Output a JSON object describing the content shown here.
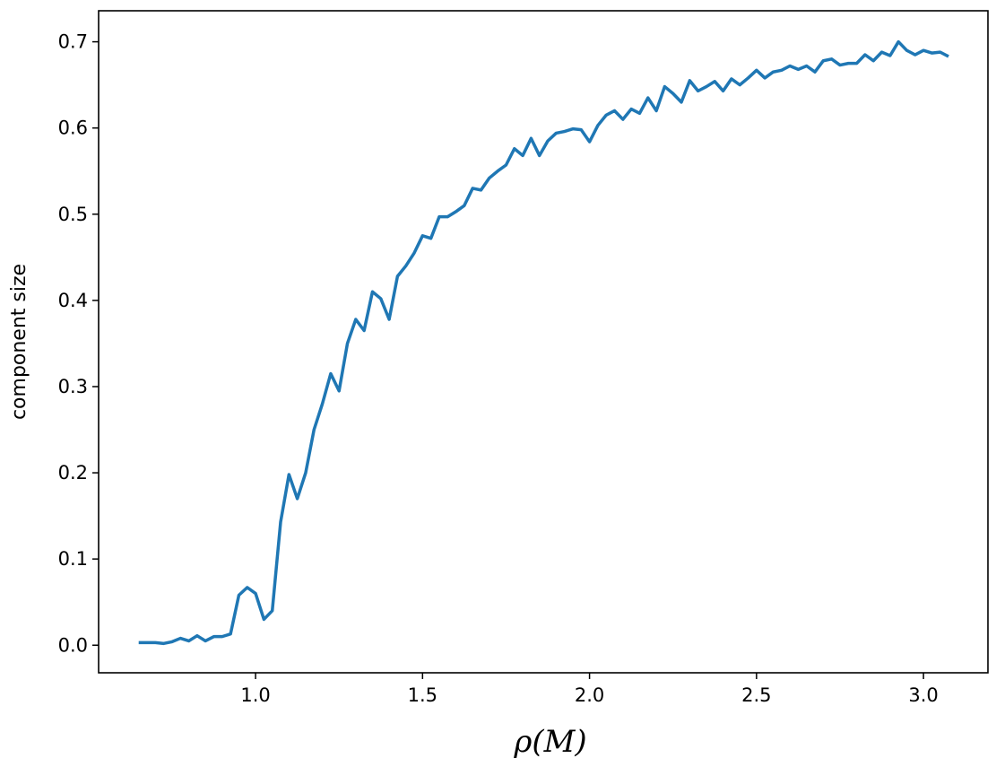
{
  "chart_data": {
    "type": "line",
    "xlabel": "ρ(M)",
    "ylabel": "component size",
    "x": [
      0.65,
      0.675,
      0.7,
      0.725,
      0.75,
      0.775,
      0.8,
      0.825,
      0.85,
      0.875,
      0.9,
      0.925,
      0.95,
      0.975,
      1.0,
      1.025,
      1.05,
      1.075,
      1.1,
      1.125,
      1.15,
      1.175,
      1.2,
      1.225,
      1.25,
      1.275,
      1.3,
      1.325,
      1.35,
      1.375,
      1.4,
      1.425,
      1.45,
      1.475,
      1.5,
      1.525,
      1.55,
      1.575,
      1.6,
      1.625,
      1.65,
      1.675,
      1.7,
      1.725,
      1.75,
      1.775,
      1.8,
      1.825,
      1.85,
      1.875,
      1.9,
      1.925,
      1.95,
      1.975,
      2.0,
      2.025,
      2.05,
      2.075,
      2.1,
      2.125,
      2.15,
      2.175,
      2.2,
      2.225,
      2.25,
      2.275,
      2.3,
      2.325,
      2.35,
      2.375,
      2.4,
      2.425,
      2.45,
      2.475,
      2.5,
      2.525,
      2.55,
      2.575,
      2.6,
      2.625,
      2.65,
      2.675,
      2.7,
      2.725,
      2.75,
      2.775,
      2.8,
      2.825,
      2.85,
      2.875,
      2.9,
      2.925,
      2.95,
      2.975,
      3.0,
      3.025,
      3.05,
      3.075
    ],
    "series": [
      {
        "color": "#1f77b4",
        "values": [
          0.003,
          0.003,
          0.003,
          0.002,
          0.004,
          0.008,
          0.005,
          0.011,
          0.005,
          0.01,
          0.01,
          0.013,
          0.058,
          0.067,
          0.06,
          0.03,
          0.04,
          0.143,
          0.198,
          0.17,
          0.2,
          0.25,
          0.28,
          0.315,
          0.295,
          0.35,
          0.378,
          0.365,
          0.41,
          0.402,
          0.378,
          0.428,
          0.44,
          0.455,
          0.475,
          0.472,
          0.497,
          0.497,
          0.503,
          0.51,
          0.53,
          0.528,
          0.542,
          0.55,
          0.557,
          0.576,
          0.568,
          0.588,
          0.568,
          0.585,
          0.594,
          0.596,
          0.599,
          0.598,
          0.584,
          0.603,
          0.615,
          0.62,
          0.61,
          0.622,
          0.617,
          0.635,
          0.62,
          0.648,
          0.64,
          0.63,
          0.655,
          0.643,
          0.648,
          0.654,
          0.643,
          0.657,
          0.65,
          0.658,
          0.667,
          0.658,
          0.665,
          0.667,
          0.672,
          0.668,
          0.672,
          0.665,
          0.678,
          0.68,
          0.673,
          0.675,
          0.675,
          0.685,
          0.678,
          0.688,
          0.684,
          0.7,
          0.69,
          0.685,
          0.69,
          0.687,
          0.688,
          0.683
        ]
      }
    ],
    "xlim": [
      0.53,
      3.193
    ],
    "xticks": [
      {
        "value": 1,
        "label": "1.0"
      },
      {
        "value": 1.5,
        "label": "1.5"
      },
      {
        "value": 2,
        "label": "2.0"
      },
      {
        "value": 2.5,
        "label": "2.5"
      },
      {
        "value": 3,
        "label": "3.0"
      }
    ],
    "ylim": [
      -0.032,
      0.736
    ],
    "yticks": [
      {
        "value": 0,
        "label": "0.0"
      },
      0.1,
      0.2,
      0.3,
      0.4,
      0.5,
      0.6,
      0.7
    ],
    "grid": false
  }
}
